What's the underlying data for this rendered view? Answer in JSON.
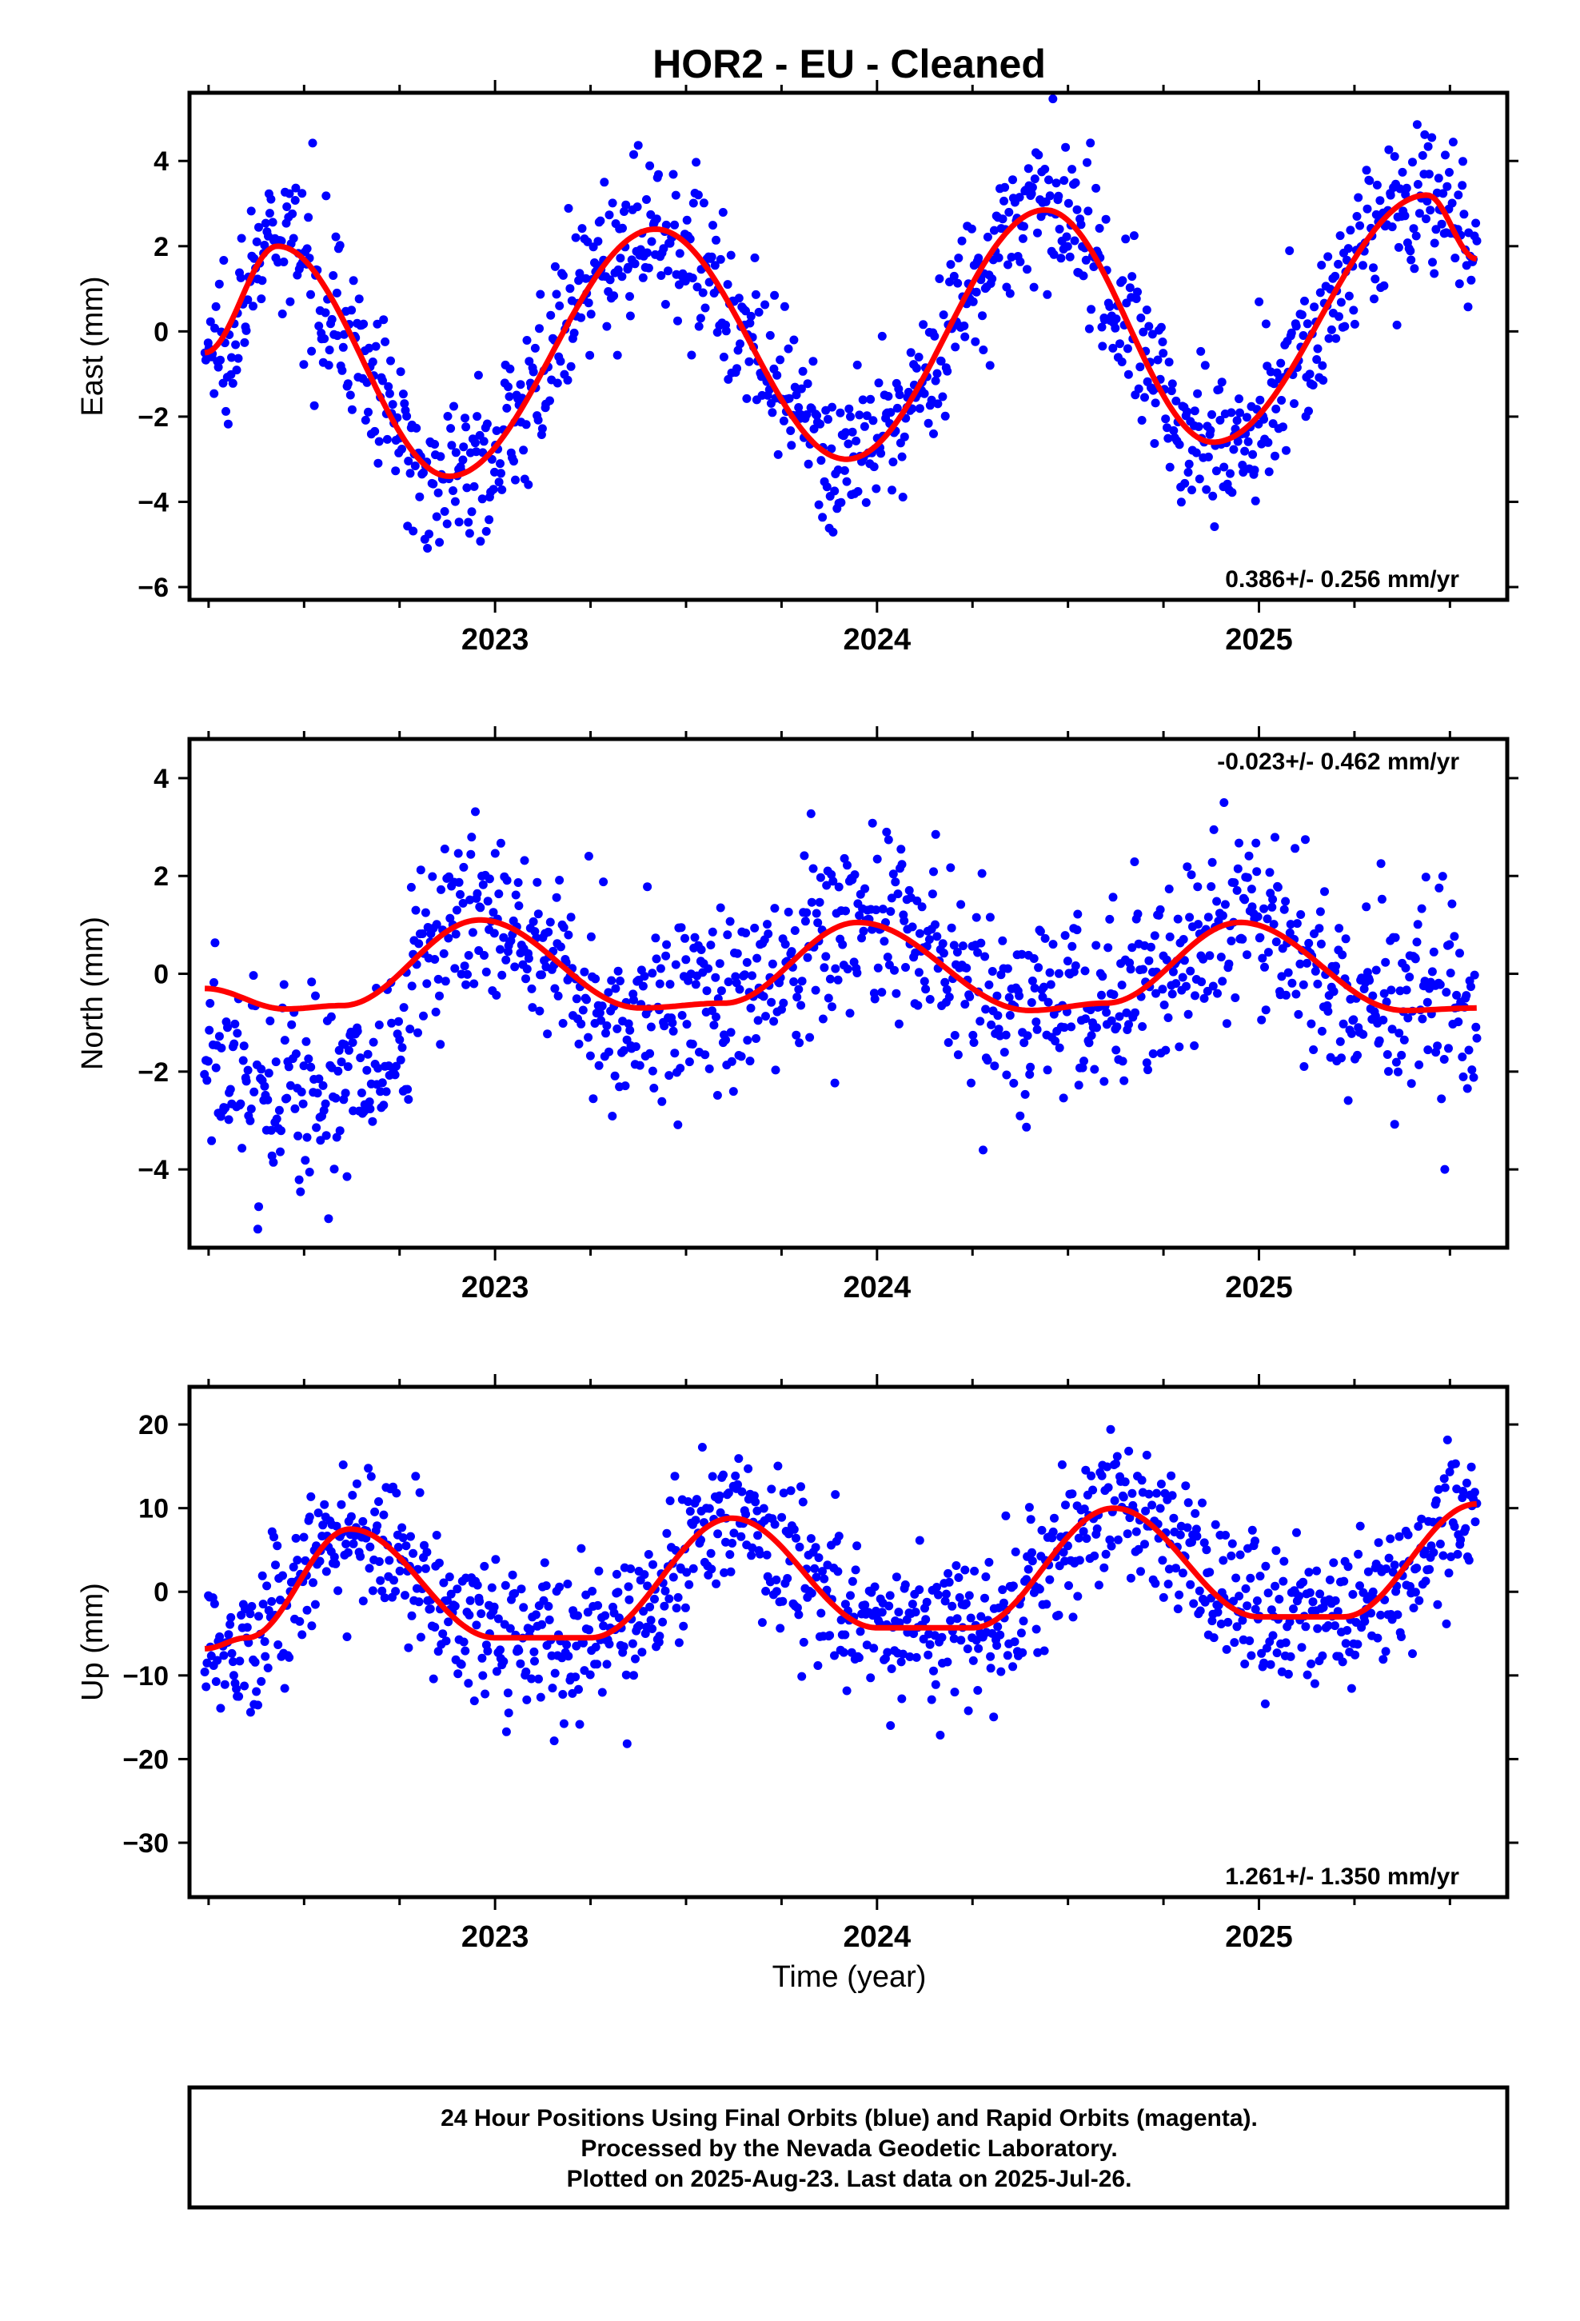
{
  "title": "HOR2  - EU - Cleaned",
  "xlabel": "Time (year)",
  "colors": {
    "points": "#0000ff",
    "model": "#ff0000",
    "frame": "#000000"
  },
  "footer": {
    "line1": "24 Hour Positions Using Final Orbits (blue) and Rapid Orbits (magenta).",
    "line2": "Processed by the Nevada Geodetic Laboratory.",
    "line3": "Plotted on 2025-Aug-23. Last data on 2025-Jul-26."
  },
  "chart_data": [
    {
      "type": "scatter",
      "component": "east",
      "ylabel": "East (mm)",
      "rate_label": "0.386+/- 0.256 mm/yr",
      "rate_position": "bottom-right",
      "xlim": [
        2022.2,
        2025.65
      ],
      "ylim": [
        -6.3,
        5.6
      ],
      "yticks": [
        4,
        2,
        0,
        -2,
        -4,
        -6
      ],
      "xticks": [
        2023,
        2024,
        2025
      ],
      "x_range": [
        2022.24,
        2025.57
      ],
      "model": {
        "trend_mm_per_yr": 0.386,
        "annual": [
          {
            "x": 2022.43,
            "y": 2.0
          },
          {
            "x": 2022.88,
            "y": -3.4
          },
          {
            "x": 2023.42,
            "y": 2.4
          },
          {
            "x": 2023.92,
            "y": -3.0
          },
          {
            "x": 2024.44,
            "y": 2.85
          },
          {
            "x": 2024.88,
            "y": -2.6
          },
          {
            "x": 2025.44,
            "y": 3.2
          }
        ],
        "end": {
          "x": 2025.57,
          "y": 1.7
        },
        "start": {
          "x": 2022.24,
          "y": -0.5
        }
      },
      "noise_sd": 0.9,
      "n_points": 1130
    },
    {
      "type": "scatter",
      "component": "north",
      "ylabel": "North (mm)",
      "rate_label": "-0.023+/- 0.462 mm/yr",
      "rate_position": "top-right",
      "xlim": [
        2022.2,
        2025.65
      ],
      "ylim": [
        -5.6,
        4.8
      ],
      "yticks": [
        4,
        2,
        0,
        -2,
        -4
      ],
      "xticks": [
        2023,
        2024,
        2025
      ],
      "x_range": [
        2022.24,
        2025.57
      ],
      "model": {
        "trend_mm_per_yr": -0.023,
        "annual": [
          {
            "x": 2022.24,
            "y": -0.3
          },
          {
            "x": 2022.45,
            "y": -0.72
          },
          {
            "x": 2022.6,
            "y": -0.65
          },
          {
            "x": 2022.96,
            "y": 1.1
          },
          {
            "x": 2023.38,
            "y": -0.7
          },
          {
            "x": 2023.6,
            "y": -0.6
          },
          {
            "x": 2023.95,
            "y": 1.05
          },
          {
            "x": 2024.4,
            "y": -0.75
          },
          {
            "x": 2024.6,
            "y": -0.6
          },
          {
            "x": 2024.95,
            "y": 1.05
          },
          {
            "x": 2025.38,
            "y": -0.75
          },
          {
            "x": 2025.57,
            "y": -0.7
          }
        ]
      },
      "noise_sd": 1.0,
      "n_points": 1130
    },
    {
      "type": "scatter",
      "component": "up",
      "ylabel": "Up (mm)",
      "rate_label": "1.261+/- 1.350 mm/yr",
      "rate_position": "bottom-right",
      "xlim": [
        2022.2,
        2025.65
      ],
      "ylim": [
        -36.5,
        24.5
      ],
      "yticks": [
        20,
        10,
        0,
        -10,
        -20,
        -30
      ],
      "xticks": [
        2023,
        2024,
        2025
      ],
      "x_range": [
        2022.24,
        2025.57
      ],
      "model": {
        "annual": [
          {
            "x": 2022.24,
            "y": -6.8
          },
          {
            "x": 2022.35,
            "y": -5.5
          },
          {
            "x": 2022.62,
            "y": 7.5
          },
          {
            "x": 2023.0,
            "y": -5.5
          },
          {
            "x": 2023.25,
            "y": -5.5
          },
          {
            "x": 2023.62,
            "y": 8.8
          },
          {
            "x": 2024.0,
            "y": -4.3
          },
          {
            "x": 2024.25,
            "y": -4.3
          },
          {
            "x": 2024.62,
            "y": 10.0
          },
          {
            "x": 2025.0,
            "y": -3.0
          },
          {
            "x": 2025.22,
            "y": -3.0
          },
          {
            "x": 2025.57,
            "y": 10.5
          }
        ]
      },
      "noise_sd": 4.5,
      "n_points": 1130
    }
  ]
}
